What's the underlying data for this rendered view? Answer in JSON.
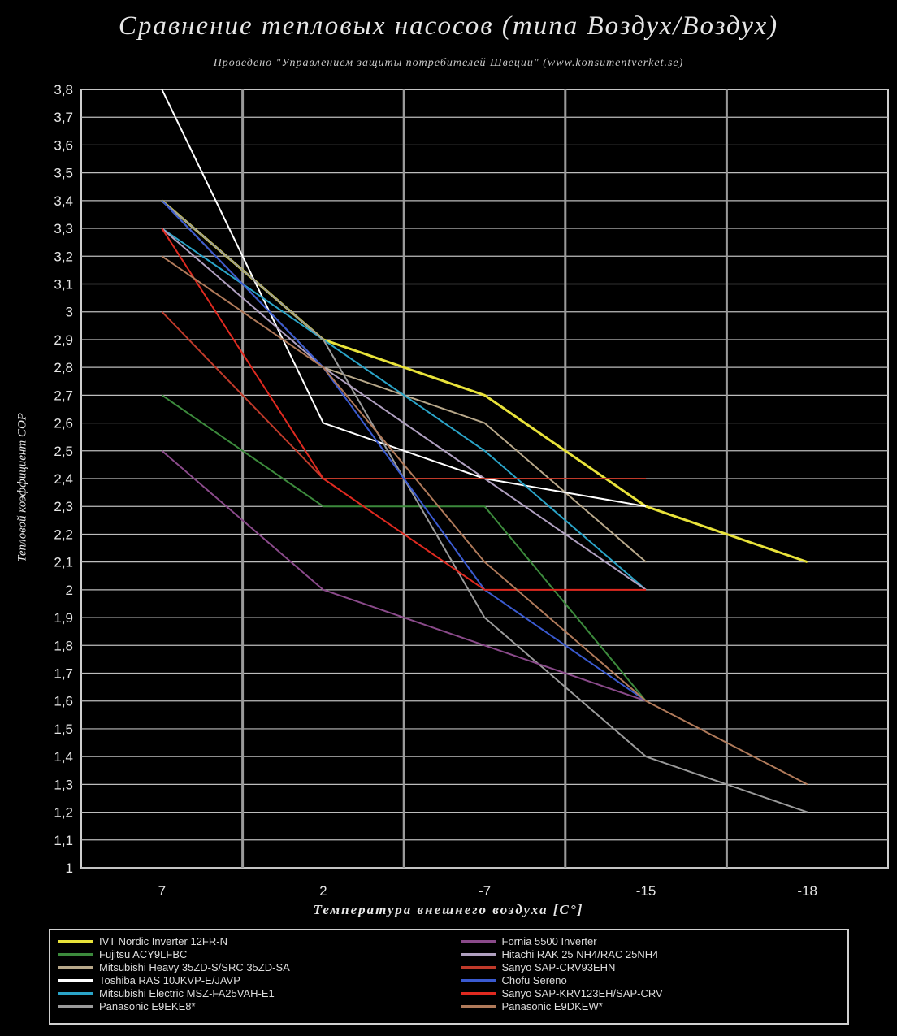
{
  "chart_data": {
    "type": "line",
    "title": "Сравнение тепловых насосов (типа Воздух/Воздух)",
    "subtitle": "Проведено \"Управлением защиты потребителей Швеции\" (www.konsumentverket.se)",
    "xlabel": "Температура внешнего воздуха [C°]",
    "ylabel": "Тепловой коэффициент COP",
    "categories": [
      "7",
      "2",
      "-7",
      "-15",
      "-18"
    ],
    "y_ticks": [
      "3,8",
      "3,7",
      "3,6",
      "3,5",
      "3,4",
      "3,3",
      "3,2",
      "3,1",
      "3",
      "2,9",
      "2,8",
      "2,7",
      "2,6",
      "2,5",
      "2,4",
      "2,3",
      "2,2",
      "2,1",
      "2",
      "1,9",
      "1,8",
      "1,7",
      "1,6",
      "1,5",
      "1,4",
      "1,3",
      "1,2",
      "1,1",
      "1"
    ],
    "ylim": [
      1,
      3.8
    ],
    "grid": true,
    "legend_position": "bottom",
    "series": [
      {
        "name": "IVT Nordic Inverter 12FR-N",
        "color": "#e8e23a",
        "values": [
          3.4,
          2.9,
          2.7,
          2.3,
          2.1
        ]
      },
      {
        "name": "Fujitsu ACY9LFBC",
        "color": "#3c8a3c",
        "values": [
          2.7,
          2.3,
          2.3,
          1.6,
          null
        ]
      },
      {
        "name": "Mitsubishi Heavy 35ZD-S/SRC 35ZD-SA",
        "color": "#b8a88a",
        "values": [
          3.4,
          2.8,
          2.6,
          2.1,
          null
        ]
      },
      {
        "name": "Toshiba RAS 10JKVP-E/JAVP",
        "color": "#ffffff",
        "values": [
          3.8,
          2.6,
          2.4,
          2.3,
          null
        ]
      },
      {
        "name": "Mitsubishi Electric MSZ-FA25VAH-E1",
        "color": "#2aa4c8",
        "values": [
          3.3,
          2.9,
          2.5,
          2.0,
          null
        ]
      },
      {
        "name": "Panasonic E9EKE8*",
        "color": "#9a9a9a",
        "values": [
          3.4,
          2.9,
          1.9,
          1.4,
          1.2
        ]
      },
      {
        "name": "Fornia 5500 Inverter",
        "color": "#8a4a8a",
        "values": [
          2.5,
          2.0,
          1.8,
          1.6,
          null
        ]
      },
      {
        "name": "Hitachi RAK 25 NH4/RAC 25NH4",
        "color": "#b0a0c0",
        "values": [
          3.3,
          2.8,
          2.4,
          2.0,
          null
        ]
      },
      {
        "name": "Sanyo SAP-CRV93EHN",
        "color": "#c03a2a",
        "values": [
          3.0,
          2.4,
          2.4,
          2.4,
          null
        ]
      },
      {
        "name": "Chofu Sereno",
        "color": "#3a5ad0",
        "values": [
          3.4,
          2.8,
          2.0,
          1.6,
          null
        ]
      },
      {
        "name": "Sanyo SAP-KRV123EH/SAP-CRV",
        "color": "#e02a20",
        "values": [
          3.3,
          2.4,
          2.0,
          2.0,
          null
        ]
      },
      {
        "name": "Panasonic E9DKEW*",
        "color": "#b07a5a",
        "values": [
          3.2,
          2.8,
          2.1,
          1.6,
          1.3
        ]
      }
    ]
  }
}
